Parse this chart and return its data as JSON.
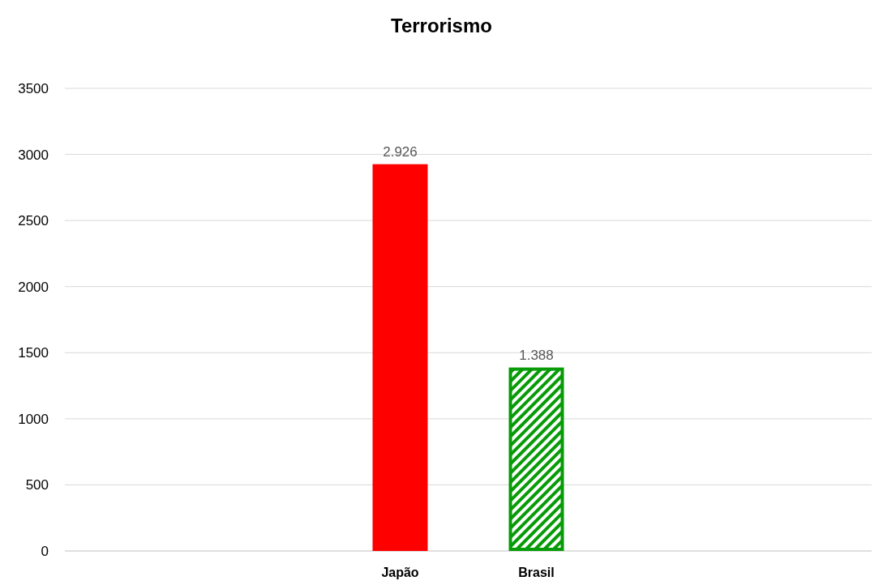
{
  "chart_data": {
    "type": "bar",
    "title": "Terrorismo",
    "categories": [
      "Japão",
      "Brasil"
    ],
    "values": [
      2926,
      1388
    ],
    "colors": [
      "#ff0000",
      "#079b07"
    ],
    "value_labels": [
      "2.926",
      "1.388"
    ],
    "ylim": [
      0,
      3500
    ],
    "yticks": [
      0,
      500,
      1000,
      1500,
      2000,
      2500,
      3000,
      3500
    ],
    "grid": "y"
  }
}
